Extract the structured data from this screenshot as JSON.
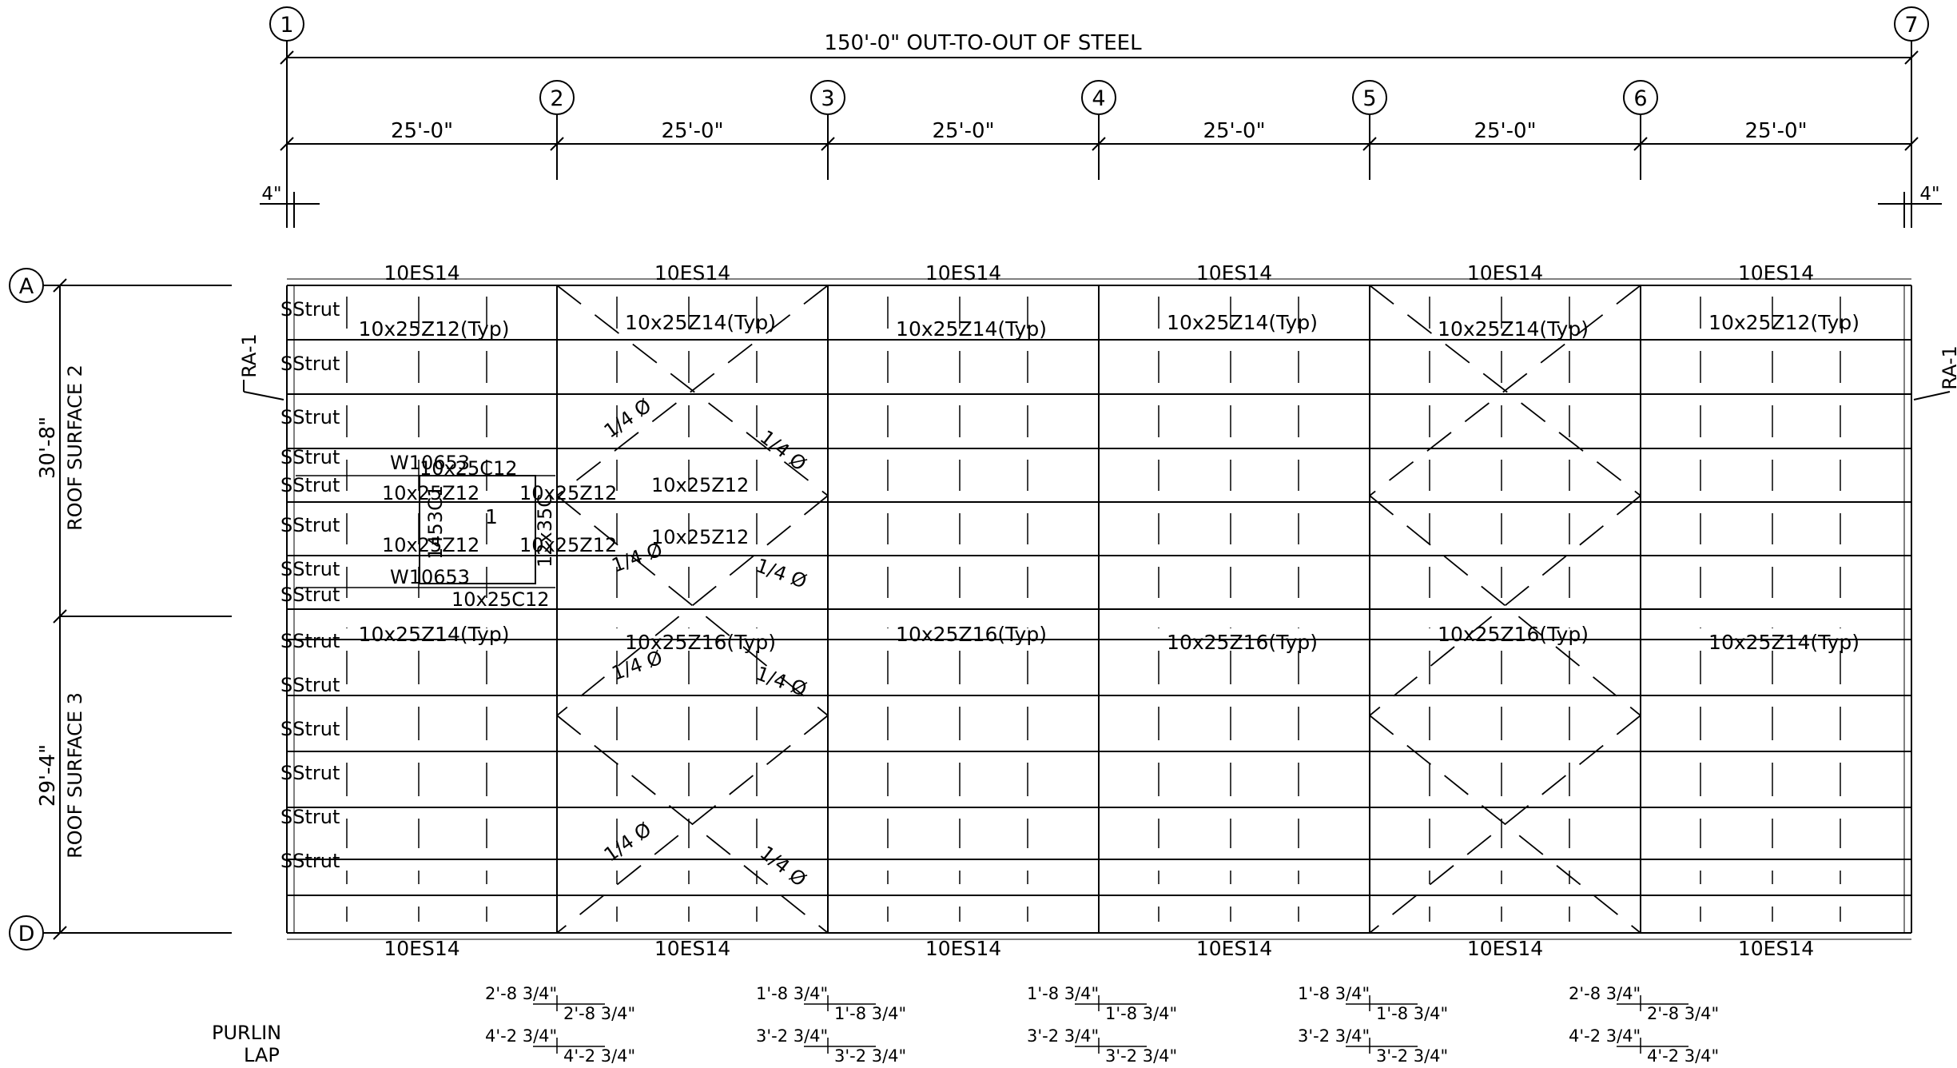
{
  "grid_columns": [
    "1",
    "2",
    "3",
    "4",
    "5",
    "6",
    "7"
  ],
  "grid_rows": [
    "A",
    "D"
  ],
  "overall_dim": "150'-0\" OUT-TO-OUT OF STEEL",
  "bay_dims": [
    "25'-0\"",
    "25'-0\"",
    "25'-0\"",
    "25'-0\"",
    "25'-0\"",
    "25'-0\""
  ],
  "end_offset_left": "4\"",
  "end_offset_right": "4\"",
  "roof_surfaces": [
    {
      "dim": "30'-8\"",
      "label": "ROOF SURFACE 2"
    },
    {
      "dim": "29'-4\"",
      "label": "ROOF SURFACE 3"
    }
  ],
  "section_marks": {
    "left": "RA-1",
    "right": "RA-1"
  },
  "eave_top": [
    "10ES14",
    "10ES14",
    "10ES14",
    "10ES14",
    "10ES14",
    "10ES14"
  ],
  "eave_bottom": [
    "10ES14",
    "10ES14",
    "10ES14",
    "10ES14",
    "10ES14",
    "10ES14"
  ],
  "strut_labels": [
    "S",
    "S",
    "S",
    "S",
    "S",
    "S",
    "S",
    "S",
    "S",
    "S",
    "S",
    "S",
    "S",
    "S"
  ],
  "strut_word": "Strut",
  "purlin_upper": [
    "10x25Z12(Typ)",
    "10x25Z14(Typ)",
    "10x25Z14(Typ)",
    "10x25Z14(Typ)",
    "10x25Z14(Typ)",
    "10x25Z12(Typ)"
  ],
  "purlin_lower": [
    "10x25Z14(Typ)",
    "10x25Z16(Typ)",
    "10x25Z16(Typ)",
    "10x25Z16(Typ)",
    "10x25Z16(Typ)",
    "10x25Z14(Typ)"
  ],
  "opening": {
    "beam_top": "W10653",
    "beam_bottom": "W10653",
    "channel_top": "10x25C12",
    "channel_bottom": "10x25C12",
    "purlin_a": "10x25Z12",
    "purlin_b": "10x25Z12",
    "jamb_left": "1453C1",
    "jamb_right": "12x35C",
    "mark": "1",
    "purlin_right_a": "10x25Z12",
    "purlin_right_b": "10x25Z12",
    "purlin_bay2_a": "10x25Z12",
    "purlin_bay2_b": "10x25Z12"
  },
  "rod_label": "1/4 Ø",
  "purlin_lap_title": [
    "PURLIN",
    "LAP"
  ],
  "laps": [
    {
      "a1": "2'-8 3/4\"",
      "a2": "2'-8 3/4\"",
      "b1": "4'-2 3/4\"",
      "b2": "4'-2 3/4\""
    },
    {
      "a1": "1'-8 3/4\"",
      "a2": "1'-8 3/4\"",
      "b1": "3'-2 3/4\"",
      "b2": "3'-2 3/4\""
    },
    {
      "a1": "1'-8 3/4\"",
      "a2": "1'-8 3/4\"",
      "b1": "3'-2 3/4\"",
      "b2": "3'-2 3/4\""
    },
    {
      "a1": "1'-8 3/4\"",
      "a2": "1'-8 3/4\"",
      "b1": "3'-2 3/4\"",
      "b2": "3'-2 3/4\""
    },
    {
      "a1": "2'-8 3/4\"",
      "a2": "2'-8 3/4\"",
      "b1": "4'-2 3/4\"",
      "b2": "4'-2 3/4\""
    }
  ]
}
